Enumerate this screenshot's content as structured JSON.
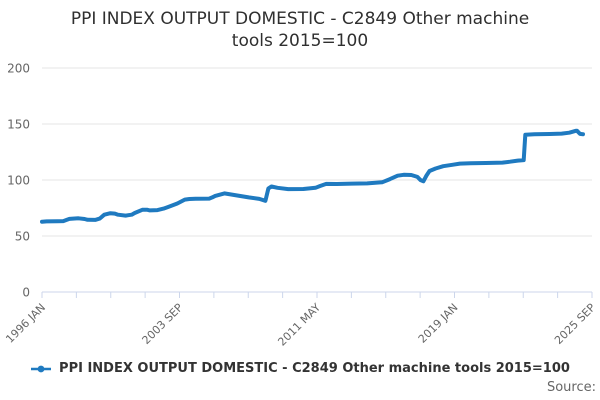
{
  "title_lines": [
    "PPI INDEX OUTPUT DOMESTIC - C2849 Other machine",
    "tools 2015=100"
  ],
  "source_label": "Source:",
  "legend": {
    "label": "PPI INDEX OUTPUT DOMESTIC - C2849 Other machine tools 2015=100",
    "marker": "line-with-dot-icon"
  },
  "colors": {
    "series": "#1f7ac0",
    "grid": "#e6e6e6",
    "axis": "#ccd6eb",
    "axis_labels": "#666666",
    "title": "#2f2f2f",
    "legend_text": "#333333",
    "source_text": "#666666"
  },
  "chart_data": {
    "type": "line",
    "title": "PPI INDEX OUTPUT DOMESTIC - C2849 Other machine tools 2015=100",
    "xlabel": "",
    "ylabel": "",
    "ylim": [
      0,
      200
    ],
    "yticks": [
      0,
      50,
      100,
      150,
      200
    ],
    "grid": true,
    "legend_position": "bottom",
    "x_axis": {
      "start": "1996-01",
      "end": "2025-09",
      "tick_labels": [
        "1996 JAN",
        "2003 SEP",
        "2011 MAY",
        "2019 JAN",
        "2025 SEP"
      ],
      "minor_tick_count": 17,
      "label_rotation_deg": -45
    },
    "series": [
      {
        "name": "PPI INDEX OUTPUT DOMESTIC - C2849 Other machine tools 2015=100",
        "color": "#1f7ac0",
        "points": [
          [
            "1996-01",
            62.8
          ],
          [
            "1996-04",
            63.0
          ],
          [
            "1996-11",
            63.2
          ],
          [
            "1997-03",
            63.3
          ],
          [
            "1997-05",
            64.3
          ],
          [
            "1997-07",
            65.3
          ],
          [
            "1998-01",
            65.8
          ],
          [
            "1998-05",
            65.2
          ],
          [
            "1998-07",
            64.5
          ],
          [
            "1998-12",
            64.4
          ],
          [
            "1999-03",
            65.5
          ],
          [
            "1999-06",
            69.0
          ],
          [
            "1999-10",
            70.4
          ],
          [
            "2000-01",
            70.0
          ],
          [
            "2000-03",
            69.0
          ],
          [
            "2000-08",
            68.2
          ],
          [
            "2000-12",
            69.0
          ],
          [
            "2001-02",
            70.5
          ],
          [
            "2001-07",
            73.4
          ],
          [
            "2001-10",
            73.5
          ],
          [
            "2001-12",
            72.9
          ],
          [
            "2002-05",
            73.1
          ],
          [
            "2002-09",
            74.5
          ],
          [
            "2002-12",
            75.9
          ],
          [
            "2003-06",
            79.0
          ],
          [
            "2003-11",
            82.5
          ],
          [
            "2004-02",
            83.0
          ],
          [
            "2004-06",
            83.2
          ],
          [
            "2005-03",
            83.4
          ],
          [
            "2005-05",
            84.5
          ],
          [
            "2005-07",
            85.8
          ],
          [
            "2006-01",
            88.0
          ],
          [
            "2006-08",
            86.5
          ],
          [
            "2007-05",
            84.5
          ],
          [
            "2007-12",
            83.1
          ],
          [
            "2008-04",
            81.4
          ],
          [
            "2008-06",
            92.5
          ],
          [
            "2008-08",
            94.2
          ],
          [
            "2008-12",
            93.0
          ],
          [
            "2009-07",
            91.9
          ],
          [
            "2010-05",
            92.0
          ],
          [
            "2011-01",
            93.0
          ],
          [
            "2011-04",
            94.6
          ],
          [
            "2011-08",
            96.5
          ],
          [
            "2012-03",
            96.4
          ],
          [
            "2013-01",
            96.8
          ],
          [
            "2013-11",
            97.0
          ],
          [
            "2014-09",
            98.0
          ],
          [
            "2015-02",
            100.8
          ],
          [
            "2015-07",
            103.8
          ],
          [
            "2015-11",
            104.6
          ],
          [
            "2016-04",
            104.5
          ],
          [
            "2016-08",
            102.8
          ],
          [
            "2016-10",
            100.0
          ],
          [
            "2016-12",
            98.8
          ],
          [
            "2017-02",
            104.0
          ],
          [
            "2017-04",
            108.0
          ],
          [
            "2017-08",
            110.3
          ],
          [
            "2018-01",
            112.3
          ],
          [
            "2018-07",
            113.6
          ],
          [
            "2018-12",
            114.6
          ],
          [
            "2019-07",
            115.0
          ],
          [
            "2020-05",
            115.2
          ],
          [
            "2021-04",
            115.5
          ],
          [
            "2021-09",
            116.3
          ],
          [
            "2022-02",
            117.3
          ],
          [
            "2022-06",
            117.8
          ],
          [
            "2022-07",
            140.4
          ],
          [
            "2023-01",
            140.8
          ],
          [
            "2023-11",
            141.1
          ],
          [
            "2024-07",
            141.4
          ],
          [
            "2024-12",
            142.2
          ],
          [
            "2025-04",
            143.8
          ],
          [
            "2025-05",
            144.0
          ],
          [
            "2025-07",
            141.2
          ],
          [
            "2025-09",
            140.9
          ]
        ]
      }
    ]
  }
}
